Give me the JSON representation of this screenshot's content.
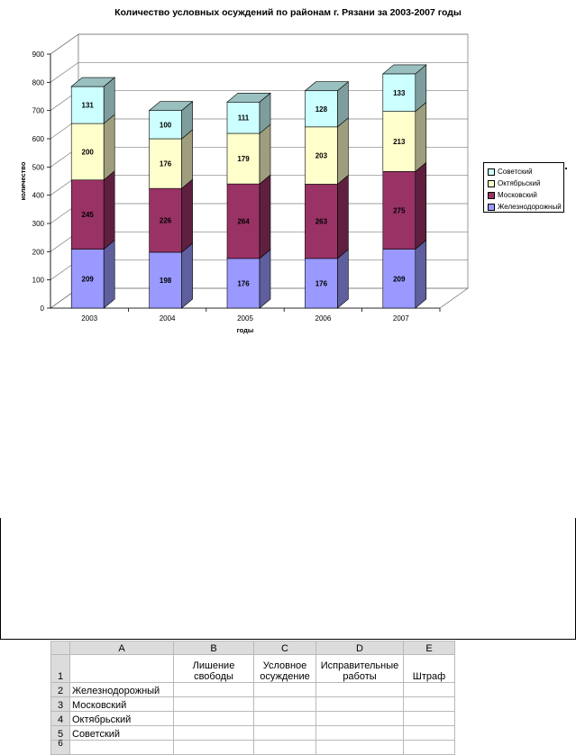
{
  "chart_data": {
    "type": "bar",
    "stacked": true,
    "three_d": true,
    "title": "Количество условных осуждений по районам г. Рязани за 2003-2007 годы",
    "xlabel": "годы",
    "ylabel": "количество",
    "categories": [
      "2003",
      "2004",
      "2005",
      "2006",
      "2007"
    ],
    "ylim": [
      0,
      900
    ],
    "yticks": [
      "0",
      "100",
      "200",
      "300",
      "400",
      "500",
      "600",
      "700",
      "800",
      "900"
    ],
    "grid": true,
    "legend_position": "right",
    "series": [
      {
        "name": "Железнодорожный",
        "values": [
          209,
          198,
          176,
          176,
          209
        ],
        "color": "#9999ff"
      },
      {
        "name": "Московский",
        "values": [
          245,
          226,
          264,
          263,
          275
        ],
        "color": "#993366"
      },
      {
        "name": "Октябрьский",
        "values": [
          200,
          176,
          179,
          203,
          213
        ],
        "color": "#ffffcc"
      },
      {
        "name": "Советский",
        "values": [
          131,
          100,
          111,
          128,
          133
        ],
        "color": "#ccffff"
      }
    ],
    "legend_order": [
      "Советский",
      "Октябрьский",
      "Московский",
      "Железнодорожный"
    ]
  },
  "spreadsheet": {
    "columns": [
      "A",
      "B",
      "C",
      "D",
      "E"
    ],
    "row_numbers": [
      "1",
      "2",
      "3",
      "4",
      "5",
      "6"
    ],
    "header_row": [
      "",
      "Лишение свободы",
      "Условное осуждение",
      "Исправительные работы",
      "Штраф"
    ],
    "rows": [
      "Железнодорожный",
      "Московский",
      "Октябрьский",
      "Советский"
    ]
  }
}
